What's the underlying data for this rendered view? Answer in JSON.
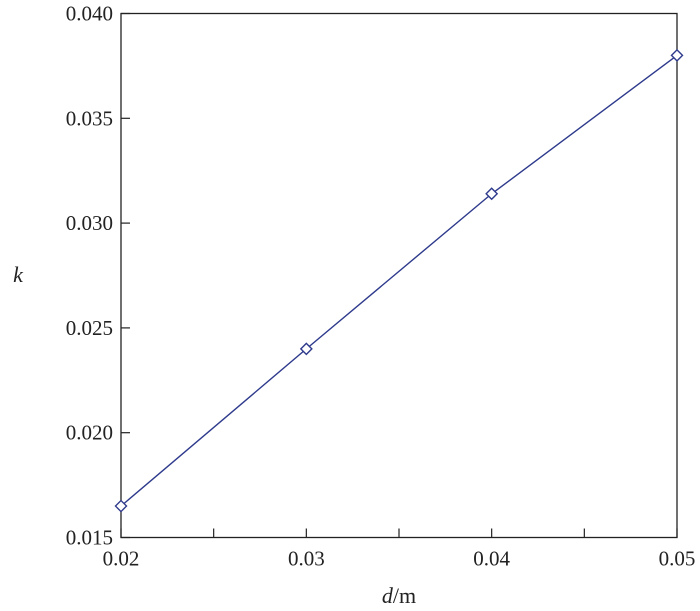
{
  "chart_data": {
    "type": "line",
    "title": "",
    "xlabel_italic": "d",
    "xlabel_unit": "/m",
    "ylabel": "k",
    "xlim": [
      0.02,
      0.05
    ],
    "ylim": [
      0.015,
      0.04
    ],
    "x_ticks": [
      "0.02",
      "0.03",
      "0.04",
      "0.05"
    ],
    "y_ticks": [
      "0.015",
      "0.020",
      "0.025",
      "0.030",
      "0.035",
      "0.040"
    ],
    "grid": false,
    "marker": "diamond-open",
    "series": [
      {
        "x": [
          0.02,
          0.03,
          0.04,
          0.05
        ],
        "values": [
          0.0165,
          0.024,
          0.0314,
          0.038
        ],
        "color": "#2e3a8c"
      }
    ]
  }
}
